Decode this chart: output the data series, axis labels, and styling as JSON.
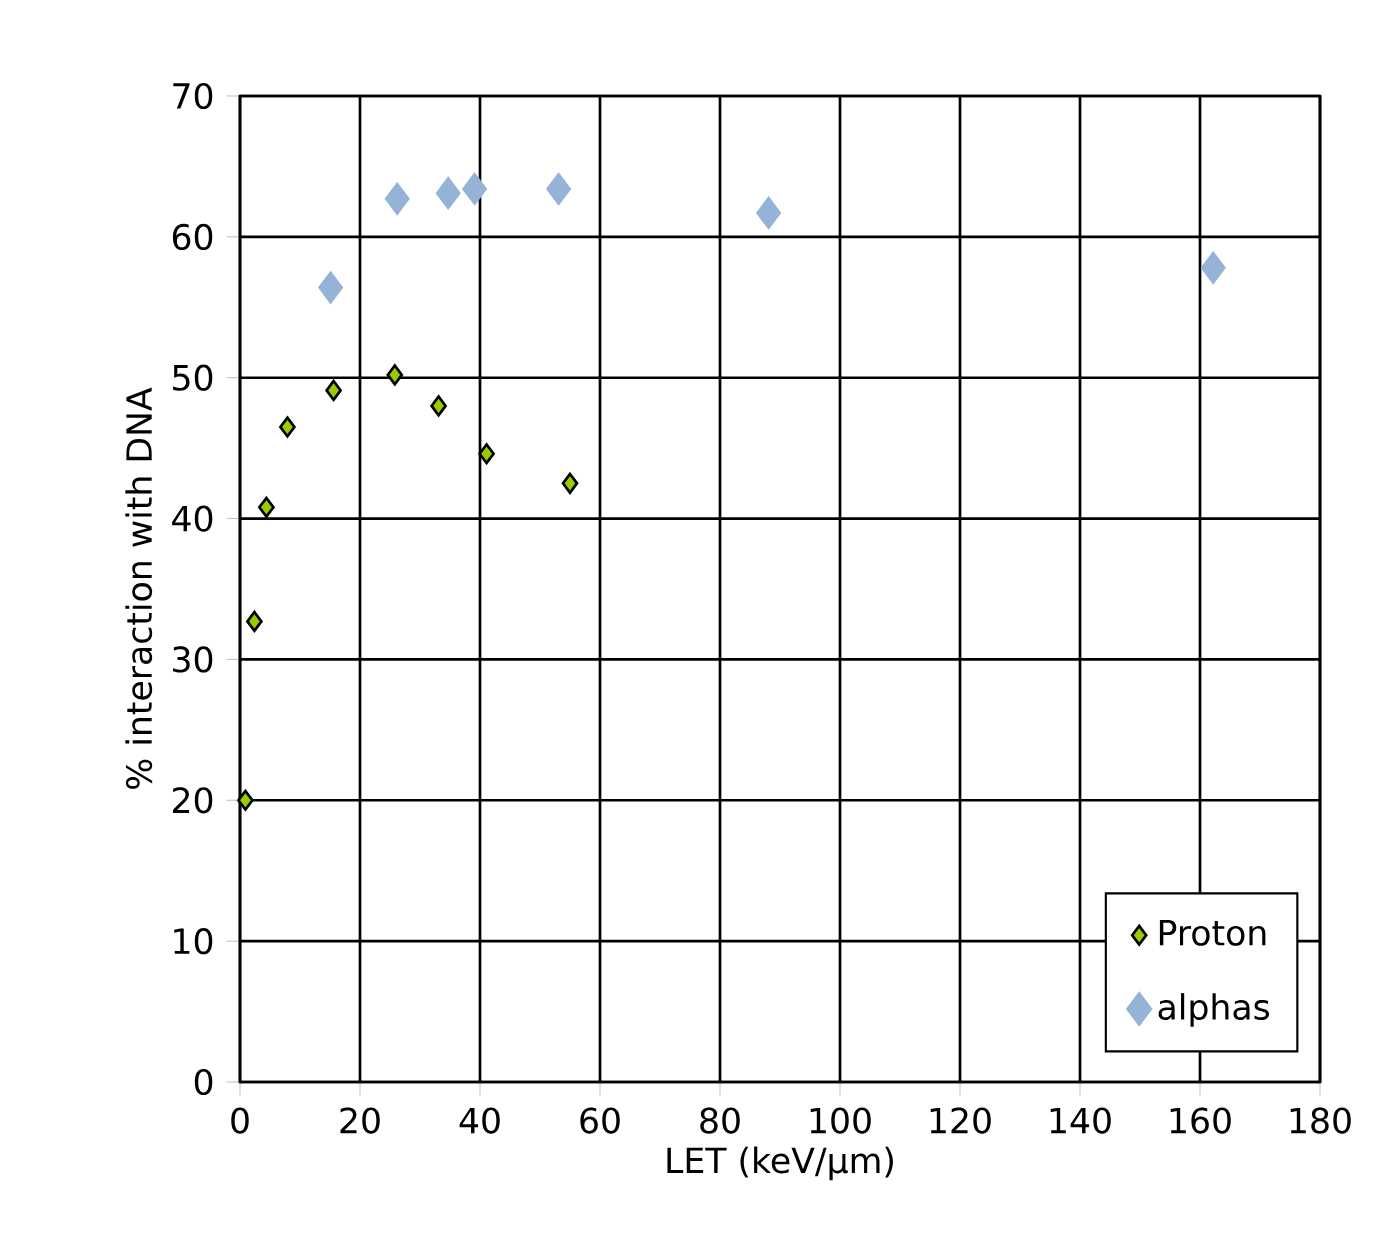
{
  "chart_data": {
    "type": "scatter",
    "xlabel": "LET (keV/µm)",
    "ylabel": "% interaction with DNA",
    "xlim": [
      0,
      180
    ],
    "xticks": [
      0,
      20,
      40,
      60,
      80,
      100,
      120,
      140,
      160,
      180
    ],
    "ylim": [
      0,
      70
    ],
    "yticks": [
      0,
      10,
      20,
      30,
      40,
      50,
      60,
      70
    ],
    "grid": true,
    "legend": "bottom right",
    "marker": "diamond",
    "series": [
      {
        "name": "Proton",
        "color": "#99cc00",
        "x": [
          0.9,
          2.4,
          4.4,
          7.9,
          15.6,
          25.8,
          33.1,
          41.1,
          55
        ],
        "values": [
          20.0,
          32.7,
          40.8,
          46.5,
          49.1,
          50.2,
          48.0,
          44.6,
          42.5
        ]
      },
      {
        "name": "alphas",
        "color": "#95b3d7",
        "x": [
          15.1,
          26.2,
          34.7,
          39.1,
          53.1,
          88.1,
          162.2
        ],
        "values": [
          56.4,
          62.7,
          63.1,
          63.4,
          63.4,
          61.7,
          57.8
        ]
      }
    ]
  }
}
